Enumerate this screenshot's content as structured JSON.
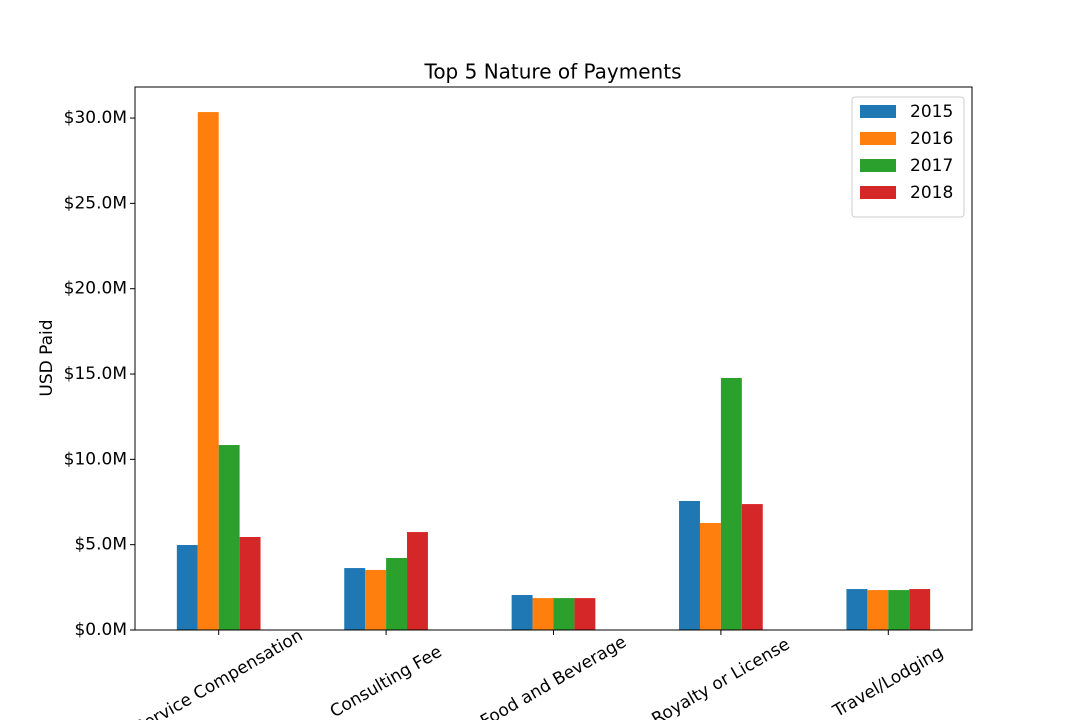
{
  "chart_data": {
    "type": "bar",
    "title": "Top 5 Nature of Payments",
    "y_label": "USD Paid",
    "categories": [
      "Service Compensation",
      "Consulting Fee",
      "Food and Beverage",
      "Royalty or License",
      "Travel/Lodging"
    ],
    "series": [
      {
        "name": "2015",
        "color": "#1f77b4",
        "values": [
          4980000,
          3630000,
          2050000,
          7560000,
          2400000
        ]
      },
      {
        "name": "2016",
        "color": "#ff7f0e",
        "values": [
          30350000,
          3520000,
          1870000,
          6270000,
          2340000
        ]
      },
      {
        "name": "2017",
        "color": "#2ca02c",
        "values": [
          10840000,
          4220000,
          1870000,
          14770000,
          2340000
        ]
      },
      {
        "name": "2018",
        "color": "#d62728",
        "values": [
          5450000,
          5740000,
          1870000,
          7380000,
          2400000
        ]
      }
    ],
    "ylim": [
      0,
      31820000
    ],
    "yticks": [
      {
        "value": 0,
        "label": "$0.0M"
      },
      {
        "value": 5000000,
        "label": "$5.0M"
      },
      {
        "value": 10000000,
        "label": "$10.0M"
      },
      {
        "value": 15000000,
        "label": "$15.0M"
      },
      {
        "value": 20000000,
        "label": "$20.0M"
      },
      {
        "value": 25000000,
        "label": "$25.0M"
      },
      {
        "value": 30000000,
        "label": "$30.0M"
      }
    ],
    "grid": false,
    "legend": "upper right"
  }
}
